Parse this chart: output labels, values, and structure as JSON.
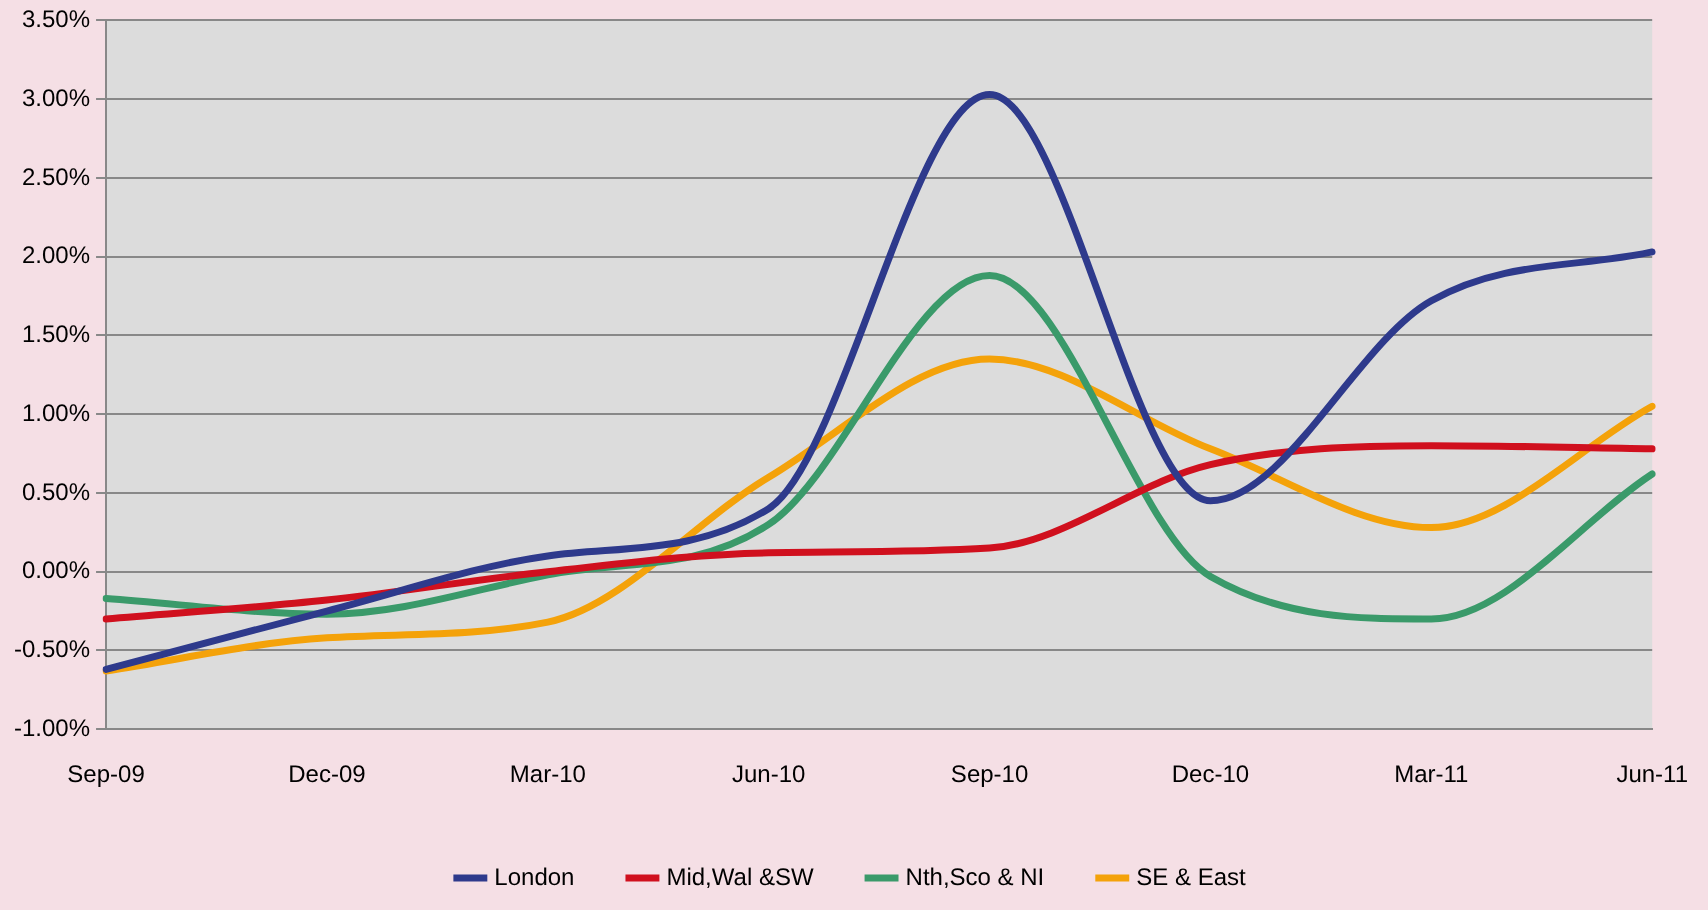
{
  "chart_data": {
    "type": "line",
    "categories": [
      "Sep-09",
      "Dec-09",
      "Mar-10",
      "Jun-10",
      "Sep-10",
      "Dec-10",
      "Mar-11",
      "Jun-11"
    ],
    "series": [
      {
        "name": "London",
        "color": "#2e3a8c",
        "values": [
          -0.62,
          -0.25,
          0.1,
          0.4,
          3.03,
          0.45,
          1.72,
          2.03
        ]
      },
      {
        "name": "Mid,Wal &SW",
        "color": "#d0101e",
        "values": [
          -0.3,
          -0.18,
          0.0,
          0.12,
          0.15,
          0.68,
          0.8,
          0.78
        ]
      },
      {
        "name": "Nth,Sco & NI",
        "color": "#3a9a6a",
        "values": [
          -0.17,
          -0.27,
          -0.02,
          0.3,
          1.88,
          -0.03,
          -0.3,
          0.62
        ]
      },
      {
        "name": "SE & East",
        "color": "#f4a20a",
        "values": [
          -0.63,
          -0.42,
          -0.32,
          0.6,
          1.35,
          0.78,
          0.28,
          1.05
        ]
      }
    ],
    "ylim": [
      -1,
      3.5
    ],
    "yticks": [
      {
        "value": -1,
        "label": "-1.00%"
      },
      {
        "value": -0.5,
        "label": "-0.50%"
      },
      {
        "value": 0,
        "label": "0.00%"
      },
      {
        "value": 0.5,
        "label": "0.50%"
      },
      {
        "value": 1,
        "label": "1.00%"
      },
      {
        "value": 1.5,
        "label": "1.50%"
      },
      {
        "value": 2,
        "label": "2.00%"
      },
      {
        "value": 2.5,
        "label": "2.50%"
      },
      {
        "value": 3,
        "label": "3.00%"
      },
      {
        "value": 3.5,
        "label": "3.50%"
      }
    ],
    "grid": "y",
    "legend": "bottom",
    "line_style": "solid"
  }
}
